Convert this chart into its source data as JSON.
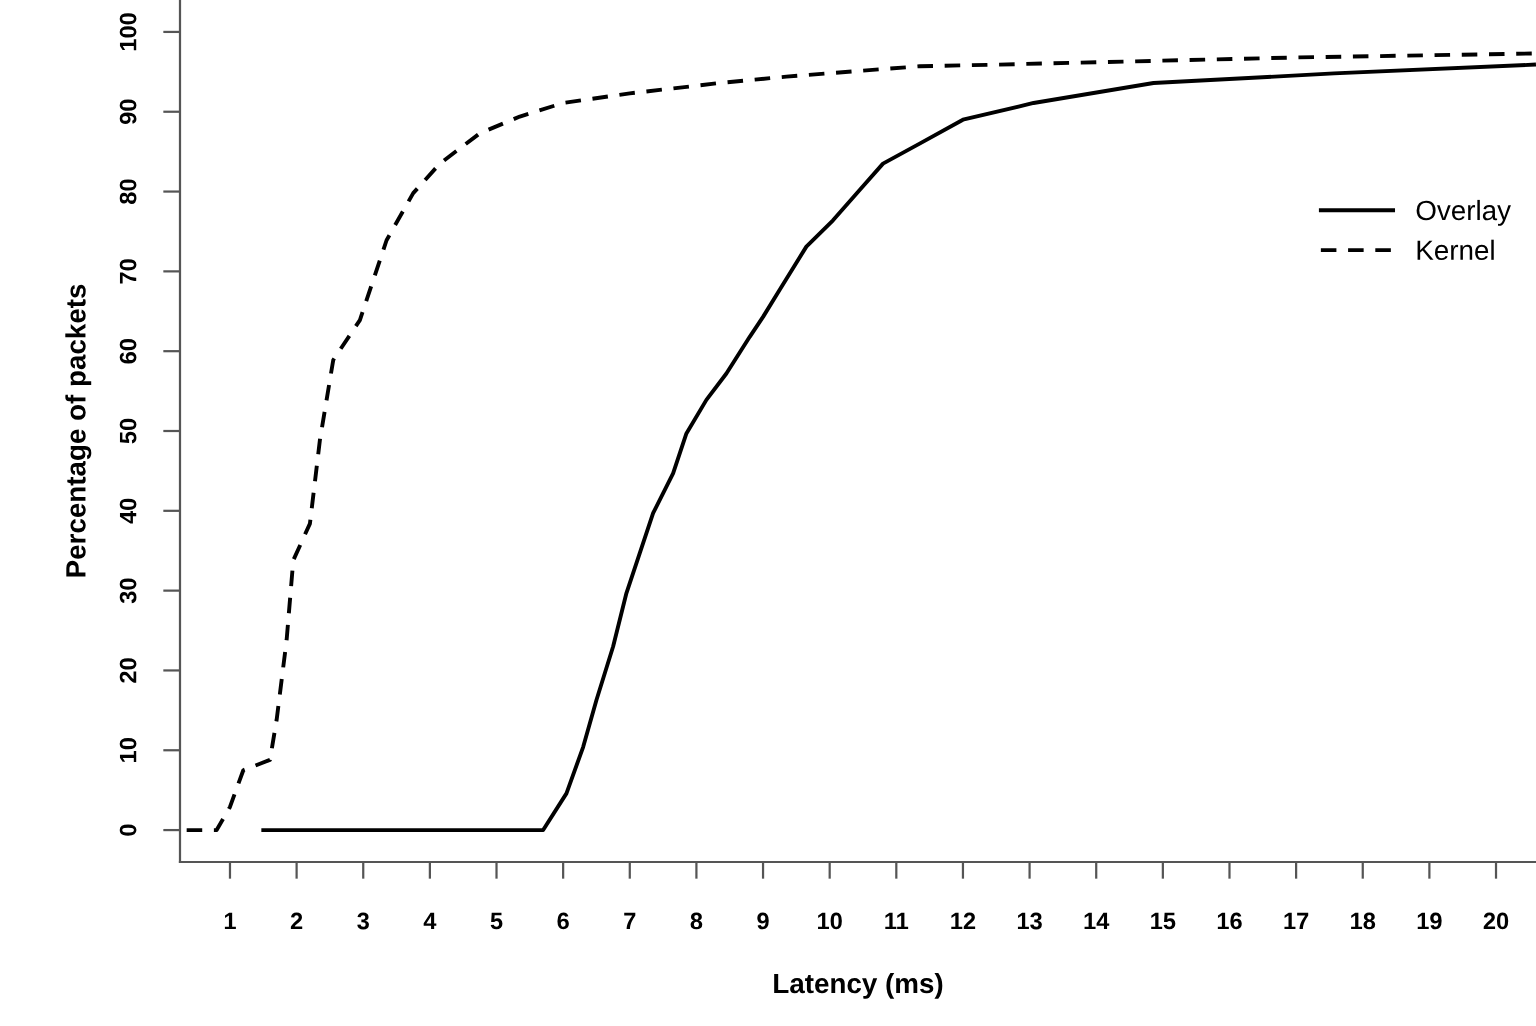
{
  "chart_data": {
    "type": "line",
    "xlabel": "Latency (ms)",
    "ylabel": "Percentage of packets",
    "xlim": [
      0.25,
      20.6
    ],
    "ylim": [
      -4,
      104
    ],
    "xticks": [
      1,
      2,
      3,
      4,
      5,
      6,
      7,
      8,
      9,
      10,
      11,
      12,
      13,
      14,
      15,
      16,
      17,
      18,
      19,
      20
    ],
    "yticks": [
      0,
      10,
      20,
      30,
      40,
      50,
      60,
      70,
      80,
      90,
      100
    ],
    "grid": false,
    "legend": "right",
    "marker": "none",
    "series": [
      {
        "name": "Overlay",
        "color": "#000000",
        "line_style": "solid",
        "x": [
          1.5,
          5.7,
          6.05,
          6.3,
          6.5,
          6.75,
          6.95,
          7.15,
          7.35,
          7.65,
          7.85,
          8.15,
          8.45,
          8.8,
          9.0,
          9.25,
          9.65,
          10.05,
          10.45,
          10.8,
          11.35,
          12.0,
          13.06,
          14.86,
          17.57,
          20.57
        ],
        "values": [
          0,
          0,
          4.6,
          10.4,
          16.3,
          23.0,
          29.7,
          34.7,
          39.7,
          44.7,
          49.7,
          53.9,
          57.2,
          61.8,
          64.3,
          67.7,
          73.1,
          76.4,
          80.2,
          83.5,
          86.0,
          89.0,
          91.1,
          93.6,
          94.8,
          95.9
        ]
      },
      {
        "name": "Kernel",
        "color": "#000000",
        "line_style": "dashed",
        "x": [
          0.35,
          0.8,
          1.0,
          1.2,
          1.6,
          1.7,
          1.85,
          1.95,
          2.2,
          2.35,
          2.55,
          2.95,
          3.35,
          3.75,
          4.15,
          4.75,
          5.35,
          6.0,
          7.0,
          8.35,
          9.35,
          11.35,
          12.5,
          14.5,
          17.0,
          20.6
        ],
        "values": [
          0,
          0,
          2.9,
          7.5,
          8.8,
          13.8,
          23.8,
          33.8,
          38.4,
          48.9,
          58.9,
          63.9,
          73.9,
          79.8,
          83.5,
          87.3,
          89.4,
          91.1,
          92.3,
          93.6,
          94.4,
          95.7,
          95.9,
          96.3,
          96.8,
          97.3
        ]
      }
    ]
  }
}
